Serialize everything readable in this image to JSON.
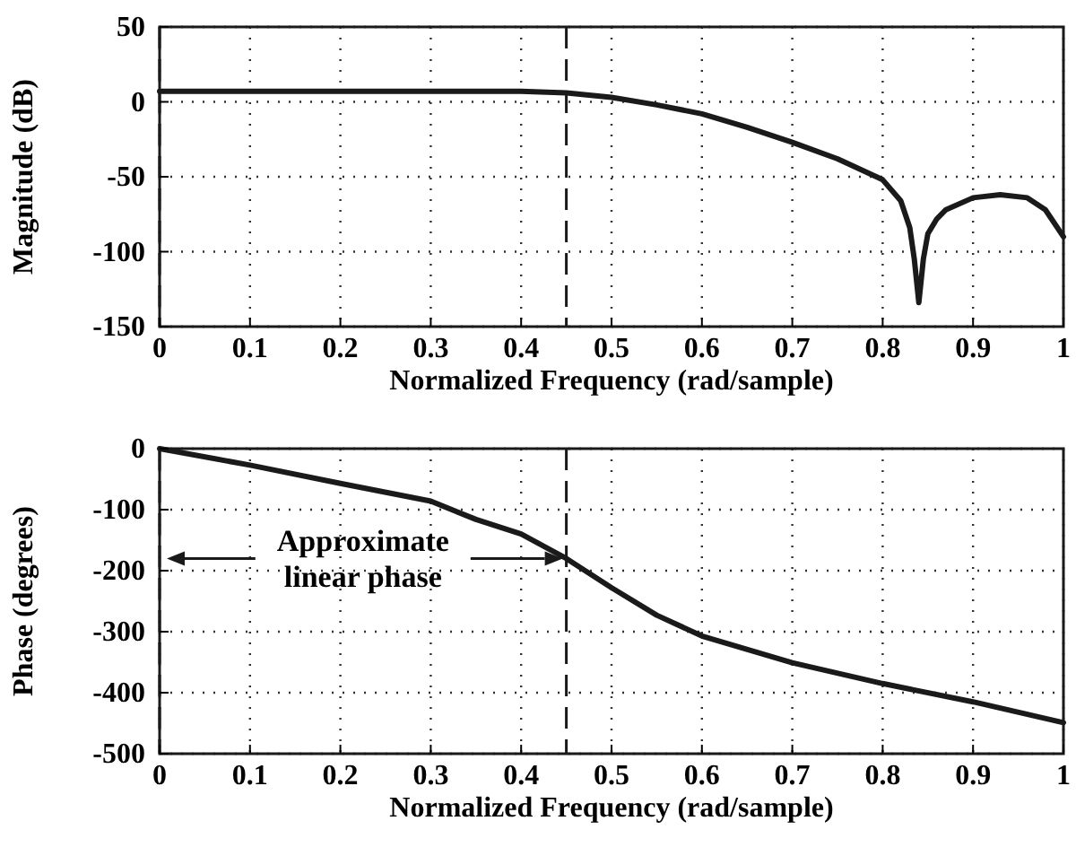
{
  "chart_data": [
    {
      "type": "line",
      "xlabel": "Normalized Frequency (rad/sample)",
      "ylabel": "Magnitude (dB)",
      "xlim": [
        0,
        1
      ],
      "ylim": [
        -150,
        50
      ],
      "xticks": [
        0,
        0.1,
        0.2,
        0.3,
        0.4,
        0.5,
        0.6,
        0.7,
        0.8,
        0.9,
        1
      ],
      "yticks": [
        -150,
        -100,
        -50,
        0,
        50
      ],
      "grid": true,
      "line_style": "solid",
      "series": [
        {
          "color": "#1a1a1a",
          "x": [
            0,
            0.1,
            0.2,
            0.3,
            0.4,
            0.45,
            0.5,
            0.55,
            0.6,
            0.65,
            0.7,
            0.75,
            0.8,
            0.82,
            0.83,
            0.835,
            0.84,
            0.845,
            0.85,
            0.86,
            0.87,
            0.9,
            0.93,
            0.96,
            0.98,
            1
          ],
          "values": [
            7,
            7,
            7,
            7,
            7,
            6,
            3,
            -2,
            -8,
            -17,
            -27,
            -38,
            -52,
            -66,
            -84,
            -105,
            -134,
            -105,
            -88,
            -78,
            -72,
            -64,
            -62,
            -64,
            -72,
            -90
          ]
        }
      ],
      "ref_lines": [
        {
          "axis": "x",
          "value": 0,
          "line_style": "dashed",
          "color": "#1a1a1a"
        },
        {
          "axis": "x",
          "value": 0.45,
          "line_style": "dashed",
          "color": "#1a1a1a"
        }
      ]
    },
    {
      "type": "line",
      "xlabel": "Normalized Frequency (rad/sample)",
      "ylabel": "Phase (degrees)",
      "xlim": [
        0,
        1
      ],
      "ylim": [
        -500,
        0
      ],
      "xticks": [
        0,
        0.1,
        0.2,
        0.3,
        0.4,
        0.5,
        0.6,
        0.7,
        0.8,
        0.9,
        1
      ],
      "yticks": [
        -500,
        -400,
        -300,
        -200,
        -100,
        0
      ],
      "grid": true,
      "line_style": "solid",
      "series": [
        {
          "color": "#1a1a1a",
          "x": [
            0,
            0.1,
            0.2,
            0.3,
            0.35,
            0.4,
            0.45,
            0.5,
            0.55,
            0.6,
            0.7,
            0.8,
            0.9,
            1
          ],
          "values": [
            0,
            -27,
            -57,
            -86,
            -116,
            -140,
            -180,
            -228,
            -273,
            -307,
            -351,
            -385,
            -415,
            -449
          ]
        }
      ],
      "ref_lines": [
        {
          "axis": "x",
          "value": 0,
          "line_style": "dashed",
          "color": "#1a1a1a"
        },
        {
          "axis": "x",
          "value": 0.45,
          "line_style": "dashed",
          "color": "#1a1a1a"
        }
      ],
      "annotations": [
        "Approximate linear phase"
      ]
    }
  ]
}
